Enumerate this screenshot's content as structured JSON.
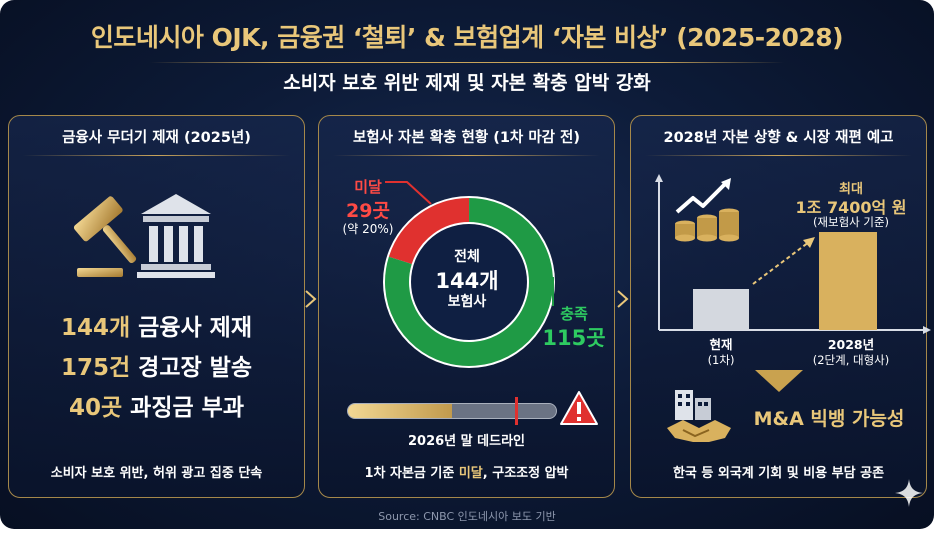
{
  "title": "인도네시아 OJK, 금융권 ‘철퇴’ & 보험업계 ‘자본 비상’ (2025-2028)",
  "subtitle": "소비자 보호 위반 제재 및 자본 확충 압박 강화",
  "panel1": {
    "title": "금융사 무더기 제재 (2025년)",
    "stats": [
      {
        "num": "144개",
        "text": " 금융사 제재"
      },
      {
        "num": "175건",
        "text": " 경고장 발송"
      },
      {
        "num": "40곳",
        "text": " 과징금 부과"
      }
    ],
    "footer": "소비자 보호 위반, 허위 광고 집중 단속",
    "icons": [
      "gavel-icon",
      "courthouse-icon"
    ]
  },
  "panel2": {
    "title": "보험사 자본 확충 현황 (1차 마감 전)",
    "donut": {
      "center_line1": "전체",
      "center_line2": "144개",
      "center_line3": "보험사",
      "segments": [
        {
          "label": "미달",
          "value": "29곳",
          "note": "(약 20%)",
          "count": 29,
          "color": "#e0312f"
        },
        {
          "label": "충족",
          "value": "115곳",
          "count": 115,
          "color": "#1f9a45"
        }
      ]
    },
    "progress": {
      "label": "2026년 말 데드라인",
      "fraction": 0.5
    },
    "footer_pre": "1차 자본금 기준 ",
    "footer_hl": "미달",
    "footer_post": ", 구조조정 압박"
  },
  "panel3": {
    "title": "2028년 자본 상향 & 시장 재편 예고",
    "max_label": "최대",
    "max_value": "1조 7400억 원",
    "max_note": "(재보험사 기준)",
    "bars": [
      {
        "label1": "현재",
        "label2": "(1차)"
      },
      {
        "label1": "2028년",
        "label2": "(2단계, 대형사)"
      }
    ],
    "ma_text": "M&A 빅뱅 가능성",
    "footer": "한국 등 외국계 기회 및 비용 부담 공존"
  },
  "source": "Source: CNBC 인도네시아 보도 기반",
  "colors": {
    "gold": "#e9c77a",
    "navy": "#0d1b38",
    "red": "#e0312f",
    "green": "#1f9a45"
  }
}
